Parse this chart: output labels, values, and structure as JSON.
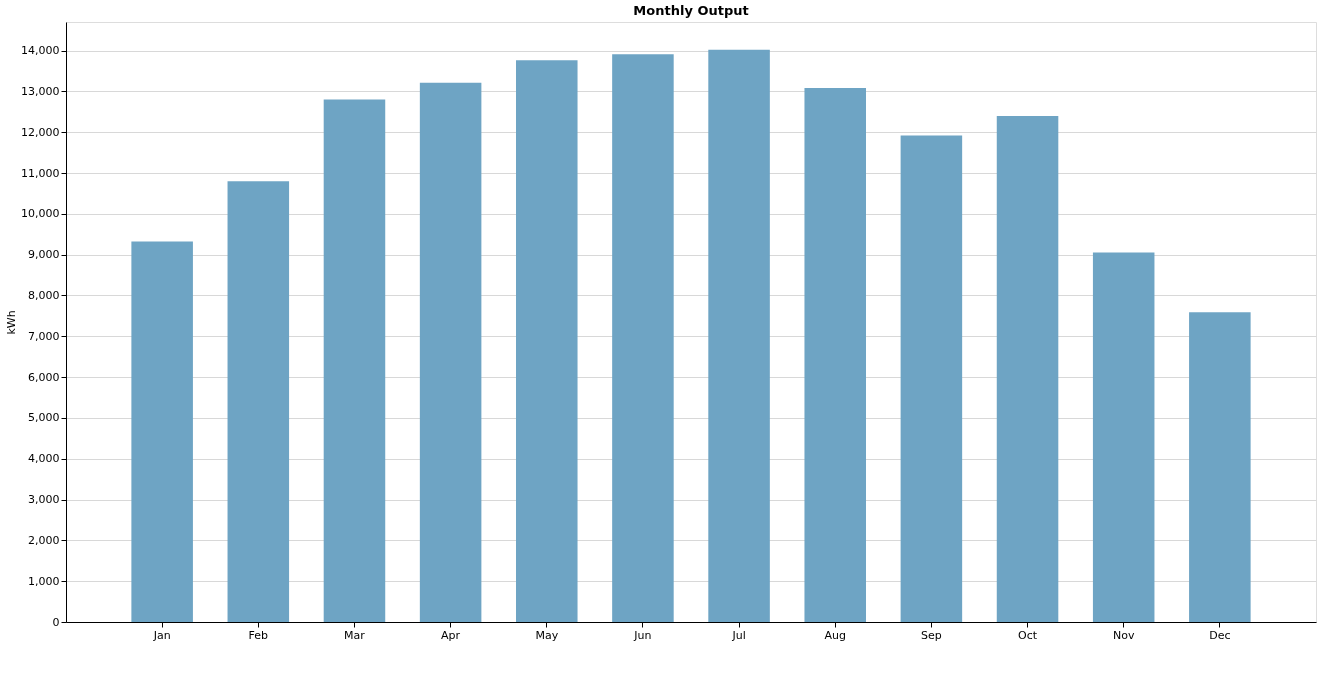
{
  "chart_data": {
    "type": "bar",
    "title": "Monthly Output",
    "ylabel": "kWh",
    "categories": [
      "Jan",
      "Feb",
      "Mar",
      "Apr",
      "May",
      "Jun",
      "Jul",
      "Aug",
      "Sep",
      "Oct",
      "Nov",
      "Dec"
    ],
    "values": [
      9320,
      10800,
      12800,
      13210,
      13760,
      13910,
      14020,
      13080,
      11920,
      12400,
      9050,
      7590
    ],
    "color": "#6ea4c4",
    "ylim": [
      0,
      14700
    ],
    "yticks": [
      0,
      {
        "value": 1000,
        "label": "1,000"
      },
      {
        "value": 2000,
        "label": "2,000"
      },
      {
        "value": 3000,
        "label": "3,000"
      },
      {
        "value": 4000,
        "label": "4,000"
      },
      {
        "value": 5000,
        "label": "5,000"
      },
      {
        "value": 6000,
        "label": "6,000"
      },
      {
        "value": 7000,
        "label": "7,000"
      },
      {
        "value": 8000,
        "label": "8,000"
      },
      {
        "value": 9000,
        "label": "9,000"
      },
      {
        "value": 10000,
        "label": "10,000"
      },
      {
        "value": 11000,
        "label": "11,000"
      },
      {
        "value": 12000,
        "label": "12,000"
      },
      {
        "value": 13000,
        "label": "13,000"
      },
      {
        "value": 14000,
        "label": "14,000"
      }
    ],
    "grid": "y"
  }
}
